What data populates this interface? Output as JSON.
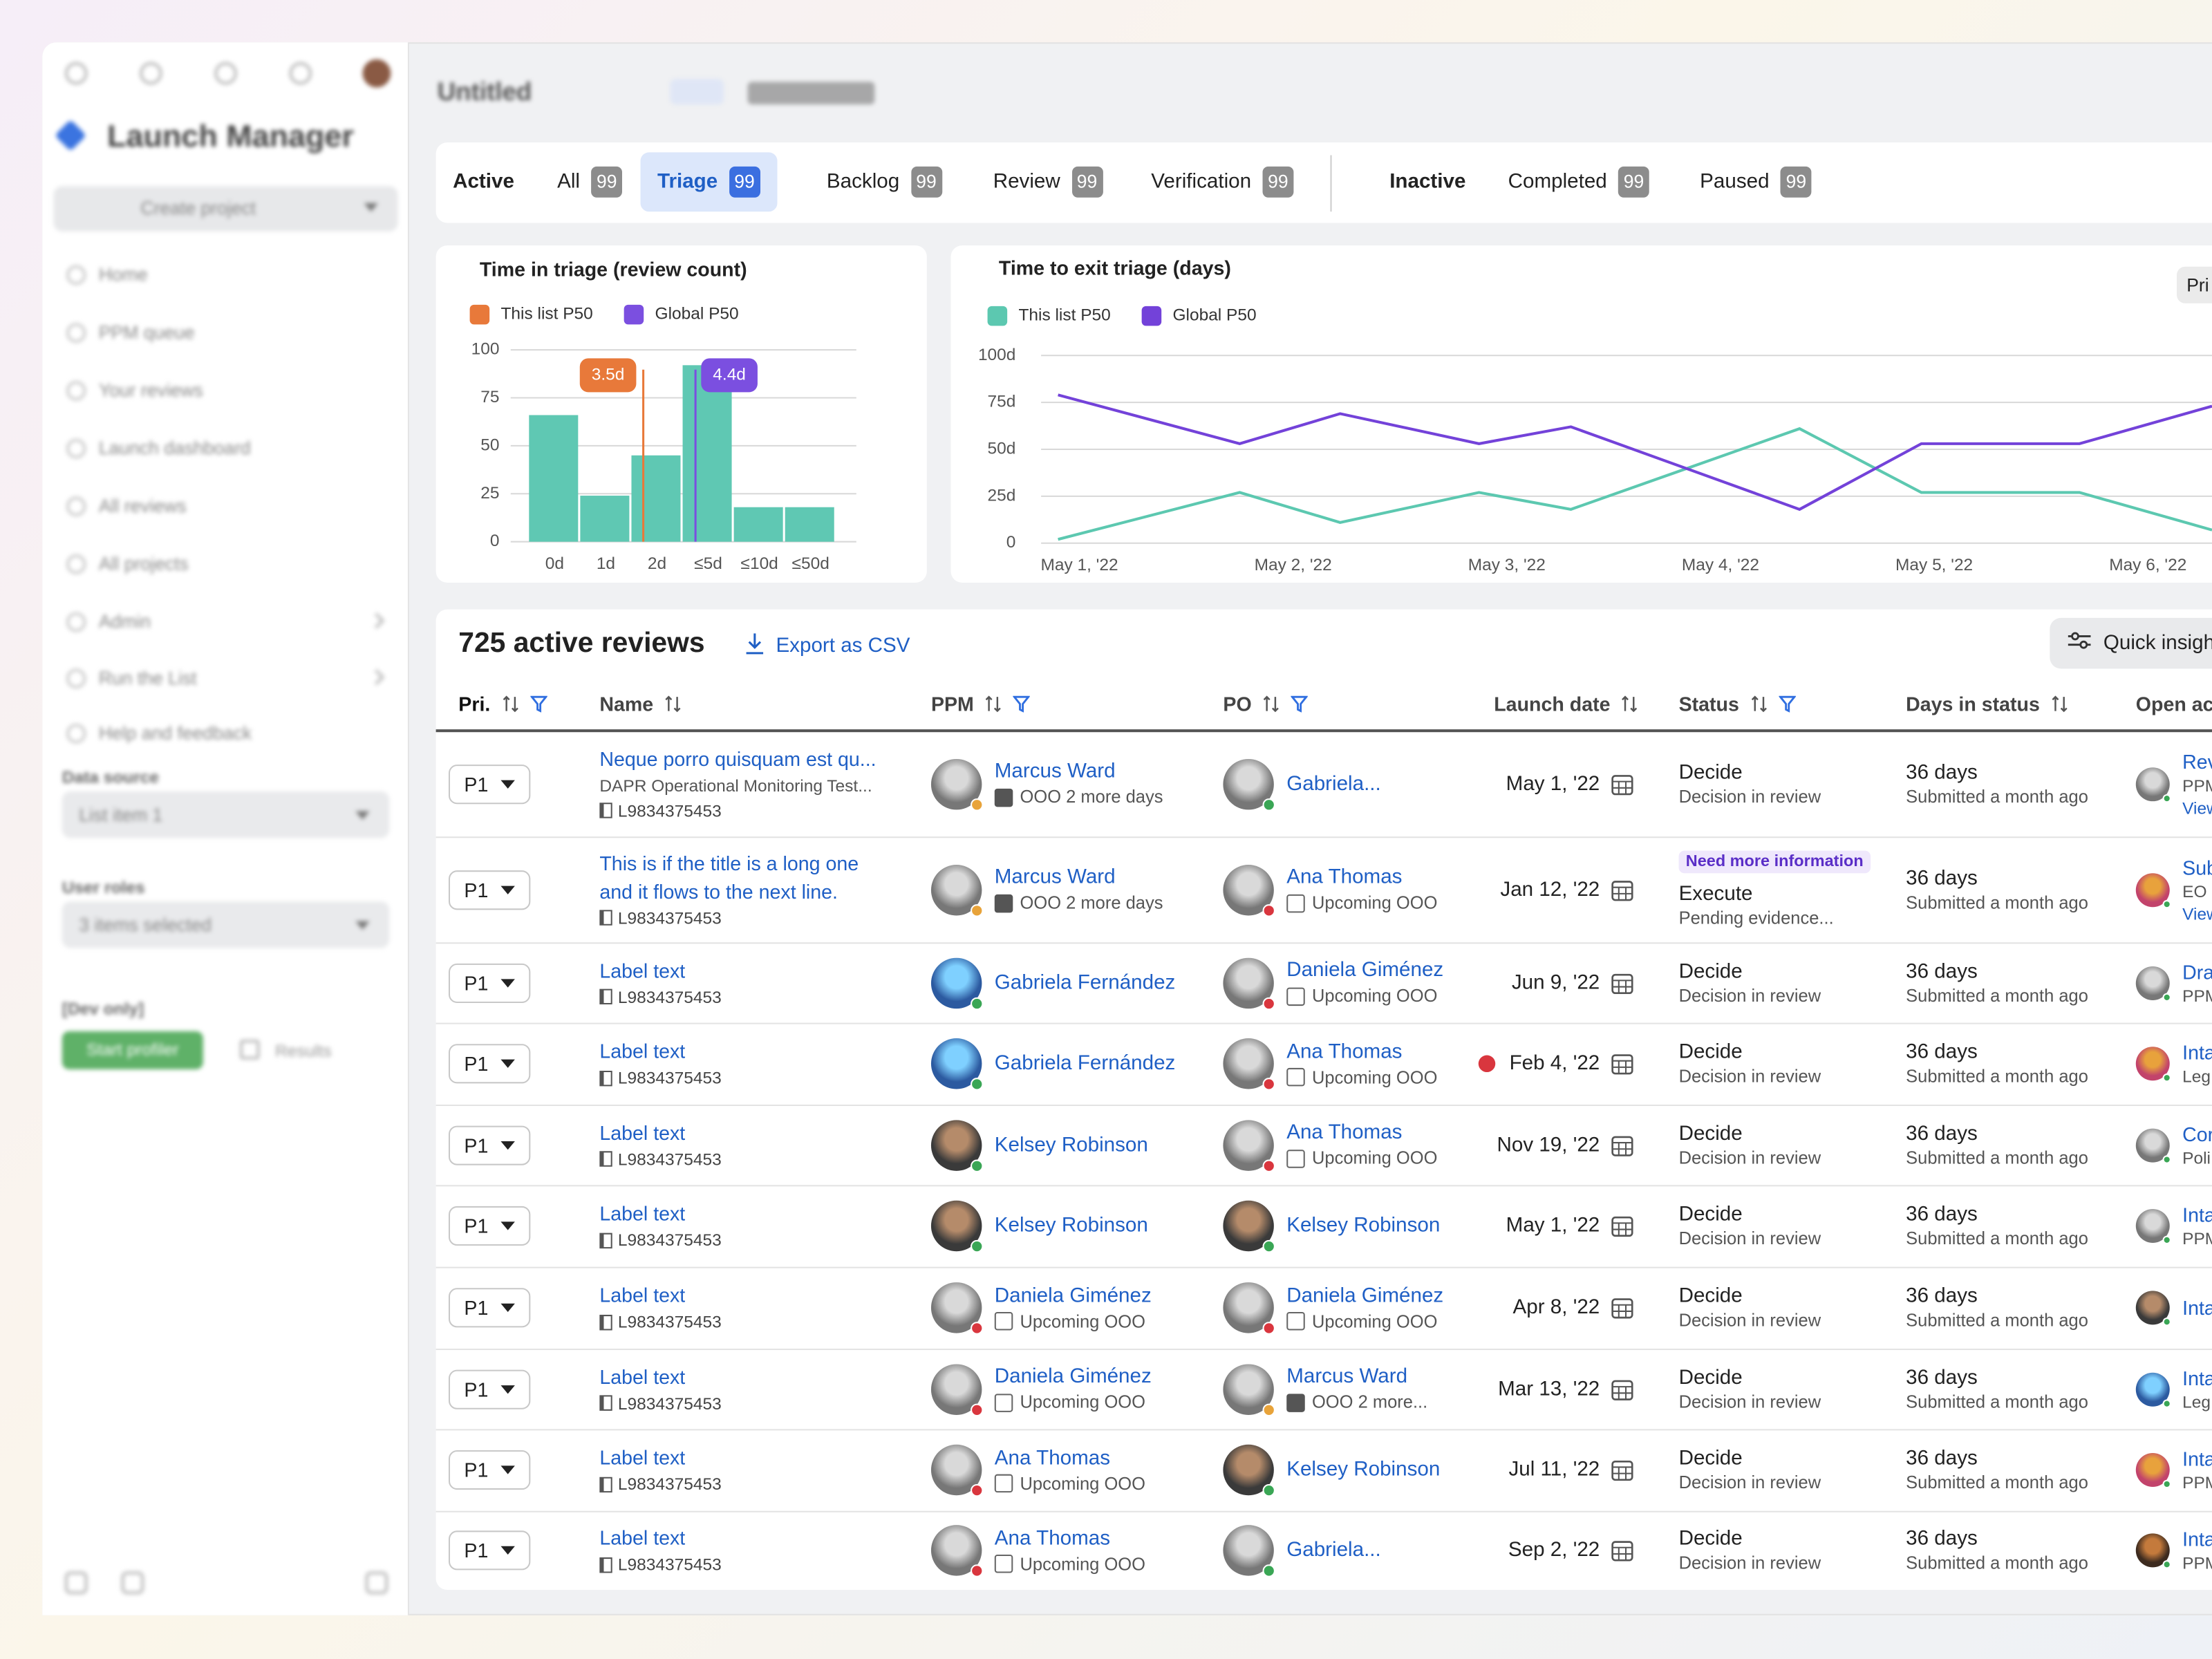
{
  "sidebar": {
    "title": "Launch Manager",
    "create": "Create project",
    "nav": [
      "Home",
      "PPM queue",
      "Your reviews",
      "Launch dashboard",
      "All reviews",
      "All projects",
      "Admin",
      "Run the List",
      "Help and feedback"
    ],
    "data_source": {
      "label": "Data source",
      "value": "List item 1"
    },
    "user_roles": {
      "label": "User roles",
      "value": "3 items selected"
    },
    "dev": {
      "label": "[Dev only]",
      "button": "Start profiler",
      "link": "Results"
    }
  },
  "header": {
    "title": "Untitled"
  },
  "tabs": {
    "active_label": "Active",
    "active": [
      {
        "label": "All",
        "count": 99
      },
      {
        "label": "Triage",
        "count": 99
      },
      {
        "label": "Backlog",
        "count": 99
      },
      {
        "label": "Review",
        "count": 99
      },
      {
        "label": "Verification",
        "count": 99
      }
    ],
    "inactive_label": "Inactive",
    "inactive": [
      {
        "label": "Completed",
        "count": 99
      },
      {
        "label": "Paused",
        "count": 99
      }
    ],
    "selected": "Triage"
  },
  "chart_data": [
    {
      "type": "bar",
      "title": "Time in triage (review count)",
      "categories": [
        "0d",
        "1d",
        "2d",
        "≤5d",
        "≤10d",
        "≤50d"
      ],
      "values": [
        66,
        24,
        45,
        92,
        18,
        18
      ],
      "color": "#5fc8b3",
      "ylim": [
        0,
        100
      ],
      "yticks": [
        0,
        25,
        50,
        75,
        100
      ],
      "grid": true,
      "markers": [
        {
          "name": "This list P50",
          "label": "3.5d",
          "color": "#e8793a"
        },
        {
          "name": "Global P50",
          "label": "4.4d",
          "color": "#7b4fe0"
        }
      ]
    },
    {
      "type": "line",
      "title": "Time to exit triage (days)",
      "control": "Pri",
      "x": [
        -0.1,
        0.75,
        1.22,
        1.87,
        2.3,
        3.37,
        3.94,
        4.68,
        5.3
      ],
      "xlim": [
        -0.1,
        5.3
      ],
      "xticks": [
        {
          "value": 0,
          "label": "May 1, '22"
        },
        {
          "value": 1,
          "label": "May 2, '22"
        },
        {
          "value": 2,
          "label": "May 3, '22"
        },
        {
          "value": 3,
          "label": "May 4, '22"
        },
        {
          "value": 4,
          "label": "May 5, '22"
        },
        {
          "value": 5,
          "label": "May 6, '22"
        }
      ],
      "ylim": [
        0,
        100
      ],
      "yticks": [
        {
          "value": 0,
          "label": "0"
        },
        {
          "value": 25,
          "label": "25d"
        },
        {
          "value": 50,
          "label": "50d"
        },
        {
          "value": 75,
          "label": "75d"
        },
        {
          "value": 100,
          "label": "100d"
        }
      ],
      "grid": true,
      "series": [
        {
          "name": "This list P50",
          "color": "#5cc8b0",
          "values": [
            2,
            27,
            11,
            27,
            18,
            61,
            27,
            27,
            7
          ]
        },
        {
          "name": "Global P50",
          "color": "#7342d9",
          "values": [
            79,
            53,
            69,
            53,
            62,
            18,
            53,
            53,
            73
          ]
        }
      ]
    }
  ],
  "table": {
    "title": "725 active reviews",
    "export": "Export as CSV",
    "insights": "Quick insigh",
    "columns": [
      {
        "label": "Pri.",
        "sort": true,
        "filter": true
      },
      {
        "label": "Name",
        "sort": true
      },
      {
        "label": "PPM",
        "sort": true,
        "filter": true
      },
      {
        "label": "PO",
        "sort": true,
        "filter": true
      },
      {
        "label": "Launch date",
        "sort": true
      },
      {
        "label": "Status",
        "sort": true,
        "filter": true
      },
      {
        "label": "Days in status",
        "sort": true
      },
      {
        "label": "Open act"
      }
    ],
    "rows": [
      {
        "priority": "P1",
        "title": "Neque porro quisquam est qu...",
        "subtitle": "DAPR Operational Monitoring Test...",
        "id": "L9834375453",
        "ppm": {
          "name": "Marcus Ward",
          "note": "OOO 2 more days"
        },
        "po": {
          "name": "Gabriela..."
        },
        "launch": "May 1, '22",
        "status": "Decide",
        "status_note": "Decision in review",
        "days": "36 days",
        "days_note": "Submitted a month ago",
        "action": {
          "title": "Rev",
          "note": "PPM",
          "link": "View"
        }
      },
      {
        "priority": "P1",
        "title": "This is if the title is a long one and it flows to the next line.",
        "id": "L9834375453",
        "ppm": {
          "name": "Marcus Ward",
          "note": "OOO 2 more days"
        },
        "po": {
          "name": "Ana Thomas",
          "note": "Upcoming OOO"
        },
        "launch": "Jan 12, '22",
        "badge": "Need more information",
        "status": "Execute",
        "status_note": "Pending evidence...",
        "days": "36 days",
        "days_note": "Submitted a month ago",
        "action": {
          "title": "Sub",
          "note": "EO",
          "link": "View"
        }
      },
      {
        "priority": "P1",
        "title": "Label text",
        "id": "L9834375453",
        "ppm": {
          "name": "Gabriela Fernández"
        },
        "po": {
          "name": "Daniela Giménez",
          "note": "Upcoming OOO"
        },
        "launch": "Jun 9, '22",
        "status": "Decide",
        "status_note": "Decision in review",
        "days": "36 days",
        "days_note": "Submitted a month ago",
        "action": {
          "title": "Dra",
          "note": "PPM"
        }
      },
      {
        "priority": "P1",
        "title": "Label text",
        "id": "L9834375453",
        "ppm": {
          "name": "Gabriela Fernández"
        },
        "po": {
          "name": "Ana Thomas",
          "note": "Upcoming OOO"
        },
        "launch": "Feb 4, '22",
        "overdue": true,
        "status": "Decide",
        "status_note": "Decision in review",
        "days": "36 days",
        "days_note": "Submitted a month ago",
        "action": {
          "title": "Inta",
          "note": "Leg"
        }
      },
      {
        "priority": "P1",
        "title": "Label text",
        "id": "L9834375453",
        "ppm": {
          "name": "Kelsey Robinson"
        },
        "po": {
          "name": "Ana Thomas",
          "note": "Upcoming OOO"
        },
        "launch": "Nov 19, '22",
        "status": "Decide",
        "status_note": "Decision in review",
        "days": "36 days",
        "days_note": "Submitted a month ago",
        "action": {
          "title": "Cor",
          "note": "Poli"
        }
      },
      {
        "priority": "P1",
        "title": "Label text",
        "id": "L9834375453",
        "ppm": {
          "name": "Kelsey Robinson"
        },
        "po": {
          "name": "Kelsey Robinson"
        },
        "launch": "May 1, '22",
        "status": "Decide",
        "status_note": "Decision in review",
        "days": "36 days",
        "days_note": "Submitted a month ago",
        "action": {
          "title": "Inta",
          "note": "PPM"
        }
      },
      {
        "priority": "P1",
        "title": "Label text",
        "id": "L9834375453",
        "ppm": {
          "name": "Daniela Giménez",
          "note": "Upcoming OOO"
        },
        "po": {
          "name": "Daniela Giménez",
          "note": "Upcoming OOO"
        },
        "launch": "Apr 8, '22",
        "status": "Decide",
        "status_note": "Decision in review",
        "days": "36 days",
        "days_note": "Submitted a month ago",
        "action": {
          "title": "Inta"
        }
      },
      {
        "priority": "P1",
        "title": "Label text",
        "id": "L9834375453",
        "ppm": {
          "name": "Daniela Giménez",
          "note": "Upcoming OOO"
        },
        "po": {
          "name": "Marcus Ward",
          "note": "OOO 2 more..."
        },
        "launch": "Mar 13, '22",
        "status": "Decide",
        "status_note": "Decision in review",
        "days": "36 days",
        "days_note": "Submitted a month ago",
        "action": {
          "title": "Inta",
          "note": "Leg"
        }
      },
      {
        "priority": "P1",
        "title": "Label text",
        "id": "L9834375453",
        "ppm": {
          "name": "Ana Thomas",
          "note": "Upcoming OOO"
        },
        "po": {
          "name": "Kelsey Robinson"
        },
        "launch": "Jul 11, '22",
        "status": "Decide",
        "status_note": "Decision in review",
        "days": "36 days",
        "days_note": "Submitted a month ago",
        "action": {
          "title": "Inta",
          "note": "PPM"
        }
      },
      {
        "priority": "P1",
        "title": "Label text",
        "id": "L9834375453",
        "ppm": {
          "name": "Ana Thomas",
          "note": "Upcoming OOO"
        },
        "po": {
          "name": "Gabriela..."
        },
        "launch": "Sep 2, '22",
        "status": "Decide",
        "status_note": "Decision in review",
        "days": "36 days",
        "days_note": "Submitted a month ago",
        "action": {
          "title": "Inta",
          "note": "PPM"
        }
      }
    ]
  }
}
